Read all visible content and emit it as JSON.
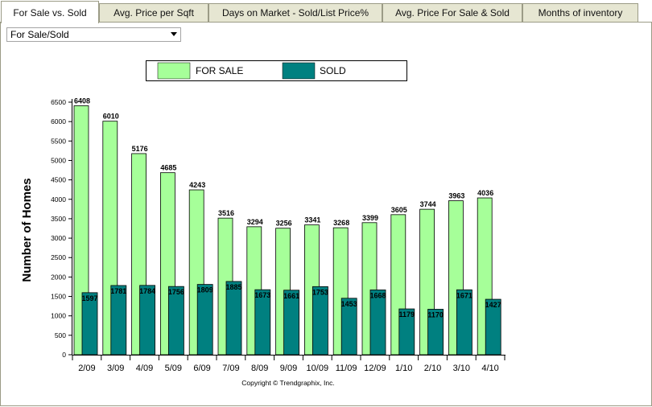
{
  "tabs": [
    {
      "label": "For Sale vs. Sold",
      "active": true
    },
    {
      "label": "Avg. Price per Sqft",
      "active": false
    },
    {
      "label": "Days on Market - Sold/List Price%",
      "active": false
    },
    {
      "label": "Avg. Price For Sale & Sold",
      "active": false
    },
    {
      "label": "Months of inventory",
      "active": false
    }
  ],
  "dropdown": {
    "selected": "For Sale/Sold"
  },
  "colors": {
    "for_sale": "#a6ff99",
    "sold": "#008080"
  },
  "chart_data": {
    "type": "bar",
    "ylabel": "Number of Homes",
    "xlabel": "",
    "ylim": [
      0,
      6500
    ],
    "yticks": [
      0,
      500,
      1000,
      1500,
      2000,
      2500,
      3000,
      3500,
      4000,
      4500,
      5000,
      5500,
      6000,
      6500
    ],
    "categories": [
      "2/09",
      "3/09",
      "4/09",
      "5/09",
      "6/09",
      "7/09",
      "8/09",
      "9/09",
      "10/09",
      "11/09",
      "12/09",
      "1/10",
      "2/10",
      "3/10",
      "4/10"
    ],
    "series": [
      {
        "name": "FOR SALE",
        "values": [
          6408,
          6010,
          5176,
          4685,
          4243,
          3516,
          3294,
          3256,
          3341,
          3268,
          3399,
          3605,
          3744,
          3963,
          4036
        ]
      },
      {
        "name": "SOLD",
        "values": [
          1597,
          1781,
          1784,
          1756,
          1809,
          1885,
          1673,
          1661,
          1753,
          1453,
          1668,
          1179,
          1170,
          1671,
          1427
        ]
      }
    ],
    "legend_position": "top",
    "grid": false,
    "footnote": "Copyright © Trendgraphix, Inc."
  }
}
